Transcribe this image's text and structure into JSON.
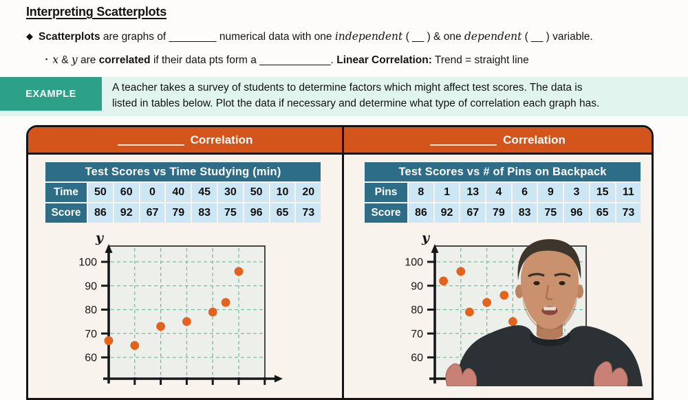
{
  "page_title": "Interpreting Scatterplots",
  "bullet1": {
    "marker": "◆",
    "b1": "Scatterplots",
    "t1": " are graphs of ",
    "blank1": "________",
    "t2": " numerical data with one ",
    "i1": "independent",
    "t3": " ( __ ) & one ",
    "i2": "dependent",
    "t4": " ( __ ) variable."
  },
  "bullet2": {
    "marker": "▪",
    "ix": "x",
    "t0": " & ",
    "iy": "y",
    "t1": " are ",
    "b1": "correlated",
    "t2": " if their data pts form a ",
    "blank1": "____________",
    "t3": ". ",
    "b2": "Linear Correlation:",
    "t4": " Trend = straight line"
  },
  "example": {
    "label": "EXAMPLE",
    "line1": "A teacher takes a survey of students to determine factors which might affect test scores. The data is",
    "line2": "listed in tables below. Plot the data if necessary and determine what type of correlation each graph has."
  },
  "panels": [
    {
      "header": {
        "blank": "__________",
        "label": "Correlation"
      },
      "table": {
        "title": "Test Scores vs Time Studying (min)",
        "rows": [
          {
            "label": "Time",
            "values": [
              "50",
              "60",
              "0",
              "40",
              "45",
              "30",
              "50",
              "10",
              "20"
            ]
          },
          {
            "label": "Score",
            "values": [
              "86",
              "92",
              "67",
              "79",
              "83",
              "75",
              "96",
              "65",
              "73"
            ]
          }
        ]
      },
      "plot": {
        "axis_label": "y",
        "yticks": [
          "100",
          "90",
          "80",
          "70",
          "60"
        ]
      }
    },
    {
      "header": {
        "blank": "__________",
        "label": "Correlation"
      },
      "table": {
        "title": "Test Scores vs # of Pins on Backpack",
        "rows": [
          {
            "label": "Pins",
            "values": [
              "8",
              "1",
              "13",
              "4",
              "6",
              "9",
              "3",
              "15",
              "11"
            ]
          },
          {
            "label": "Score",
            "values": [
              "86",
              "92",
              "67",
              "79",
              "83",
              "75",
              "96",
              "65",
              "73"
            ]
          }
        ]
      },
      "plot": {
        "axis_label": "y",
        "yticks": [
          "100",
          "90",
          "80",
          "70",
          "60"
        ]
      }
    }
  ],
  "chart_data": [
    {
      "type": "scatter",
      "title": "Test Scores vs Time Studying (min)",
      "x_name": "Time",
      "y_name": "Score",
      "x": [
        50,
        60,
        0,
        40,
        45,
        30,
        50,
        10,
        20
      ],
      "y": [
        86,
        92,
        67,
        79,
        83,
        75,
        96,
        65,
        73
      ],
      "ylabel": "y",
      "xlim": [
        0,
        60
      ],
      "ylim": [
        52,
        107
      ],
      "yticks": [
        60,
        70,
        80,
        90,
        100
      ],
      "x_grid_interval": 10,
      "grid": true,
      "plotted_points": [
        [
          0,
          67
        ],
        [
          10,
          65
        ],
        [
          20,
          73
        ],
        [
          30,
          75
        ],
        [
          40,
          79
        ],
        [
          45,
          83
        ],
        [
          50,
          96
        ]
      ]
    },
    {
      "type": "scatter",
      "title": "Test Scores vs # of Pins on Backpack",
      "x_name": "Pins",
      "y_name": "Score",
      "x": [
        8,
        1,
        13,
        4,
        6,
        9,
        3,
        15,
        11
      ],
      "y": [
        86,
        92,
        67,
        79,
        83,
        75,
        96,
        65,
        73
      ],
      "ylabel": "y",
      "xlim": [
        0,
        17.5
      ],
      "ylim": [
        52,
        107
      ],
      "yticks": [
        60,
        70,
        80,
        90,
        100
      ],
      "x_grid_interval": 3,
      "grid": true,
      "plotted_points": [
        [
          1,
          92
        ],
        [
          3,
          96
        ],
        [
          4,
          79
        ],
        [
          6,
          83
        ],
        [
          8,
          86
        ],
        [
          9,
          75
        ]
      ]
    }
  ],
  "colors": {
    "header_orange": "#d4551b",
    "table_teal": "#2e6d87",
    "table_cell_blue": "#cde6f3",
    "example_green": "#2da188",
    "example_bg": "#e1f4ee",
    "panel_bg": "#f8f3ed",
    "plot_bg": "#edf0ea",
    "grid_dash": "#72bfa4",
    "point_orange": "#e3621d"
  }
}
